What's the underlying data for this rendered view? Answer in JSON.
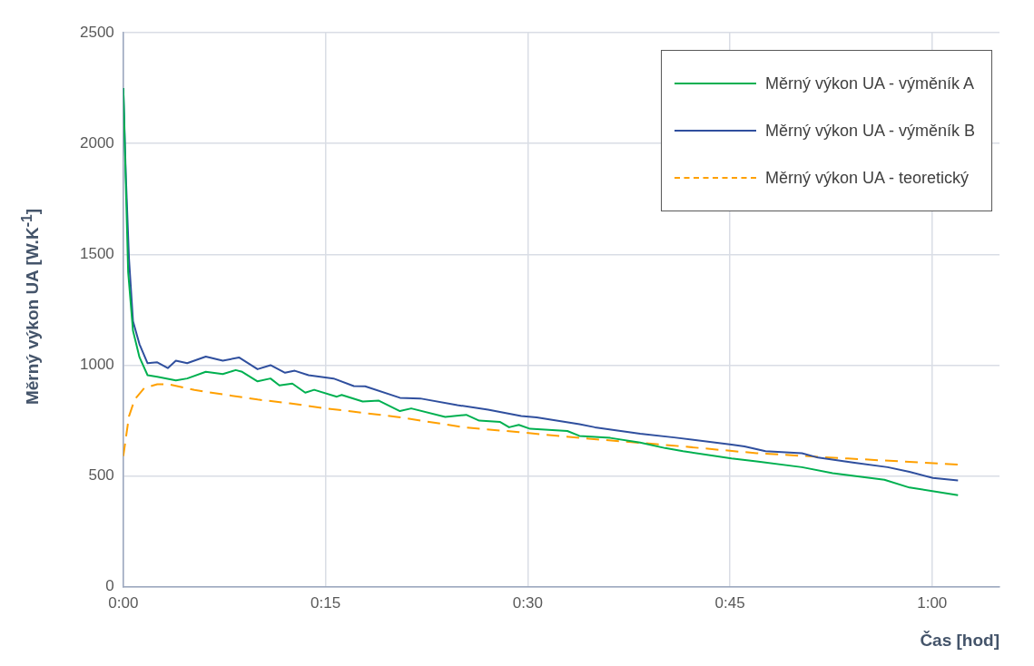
{
  "chart_data": {
    "type": "line",
    "xlabel": "Čas [hod]",
    "ylabel": "Měrný výkon UA [W.K$^{-1}$]",
    "xlim": [
      0,
      1.0833
    ],
    "xticks": [
      {
        "value": 0,
        "label": "0:00"
      },
      {
        "value": 0.25,
        "label": "0:15"
      },
      {
        "value": 0.5,
        "label": "0:30"
      },
      {
        "value": 0.75,
        "label": "0:45"
      },
      {
        "value": 1,
        "label": "1:00"
      }
    ],
    "ylim": [
      0,
      2500
    ],
    "yticks": [
      0,
      500,
      1000,
      1500,
      2000,
      2500
    ],
    "grid": true,
    "legend": "top right",
    "marker": "none",
    "series": [
      {
        "name": "Měrný výkon UA - výměník A",
        "color": "#00b050",
        "line_style": "solid",
        "x": [
          0,
          0.006,
          0.012,
          0.02,
          0.03,
          0.042,
          0.065,
          0.079,
          0.102,
          0.123,
          0.139,
          0.147,
          0.166,
          0.182,
          0.193,
          0.209,
          0.225,
          0.236,
          0.264,
          0.27,
          0.296,
          0.316,
          0.342,
          0.356,
          0.398,
          0.424,
          0.44,
          0.466,
          0.477,
          0.489,
          0.503,
          0.549,
          0.564,
          0.602,
          0.639,
          0.67,
          0.692,
          0.752,
          0.783,
          0.839,
          0.877,
          0.941,
          0.972,
          1.032
        ],
        "values": [
          2250,
          1420,
          1155,
          1036,
          955,
          948,
          931,
          940,
          970,
          960,
          978,
          970,
          927,
          940,
          909,
          917,
          876,
          889,
          858,
          866,
          836,
          840,
          793,
          805,
          767,
          776,
          750,
          744,
          720,
          731,
          713,
          703,
          681,
          672,
          651,
          626,
          612,
          579,
          566,
          540,
          513,
          483,
          448,
          414
        ]
      },
      {
        "name": "Měrný výkon UA - výměník B",
        "color": "#2f4f9e",
        "line_style": "solid",
        "x": [
          0,
          0.003,
          0.007,
          0.012,
          0.02,
          0.03,
          0.042,
          0.055,
          0.065,
          0.079,
          0.102,
          0.123,
          0.143,
          0.166,
          0.182,
          0.2,
          0.212,
          0.229,
          0.26,
          0.285,
          0.299,
          0.342,
          0.367,
          0.413,
          0.451,
          0.492,
          0.511,
          0.564,
          0.583,
          0.639,
          0.681,
          0.752,
          0.768,
          0.794,
          0.839,
          0.859,
          0.904,
          0.945,
          0.972,
          1.001,
          1.032
        ],
        "values": [
          2250,
          1870,
          1483,
          1198,
          1095,
          1009,
          1013,
          987,
          1020,
          1009,
          1039,
          1020,
          1035,
          982,
          1000,
          966,
          975,
          955,
          940,
          906,
          905,
          853,
          850,
          820,
          799,
          771,
          765,
          734,
          720,
          691,
          674,
          642,
          634,
          612,
          603,
          583,
          560,
          540,
          519,
          491,
          480
        ]
      },
      {
        "name": "Měrný výkon UA - teoretický",
        "color": "#ffa000",
        "line_style": "dashed",
        "x": [
          0,
          0.007,
          0.014,
          0.026,
          0.042,
          0.057,
          0.088,
          0.127,
          0.166,
          0.206,
          0.248,
          0.283,
          0.338,
          0.421,
          0.489,
          0.564,
          0.678,
          0.783,
          0.896,
          1.032
        ],
        "values": [
          590,
          769,
          845,
          897,
          914,
          913,
          888,
          866,
          845,
          828,
          806,
          791,
          767,
          720,
          698,
          672,
          638,
          603,
          579,
          552
        ]
      }
    ]
  }
}
